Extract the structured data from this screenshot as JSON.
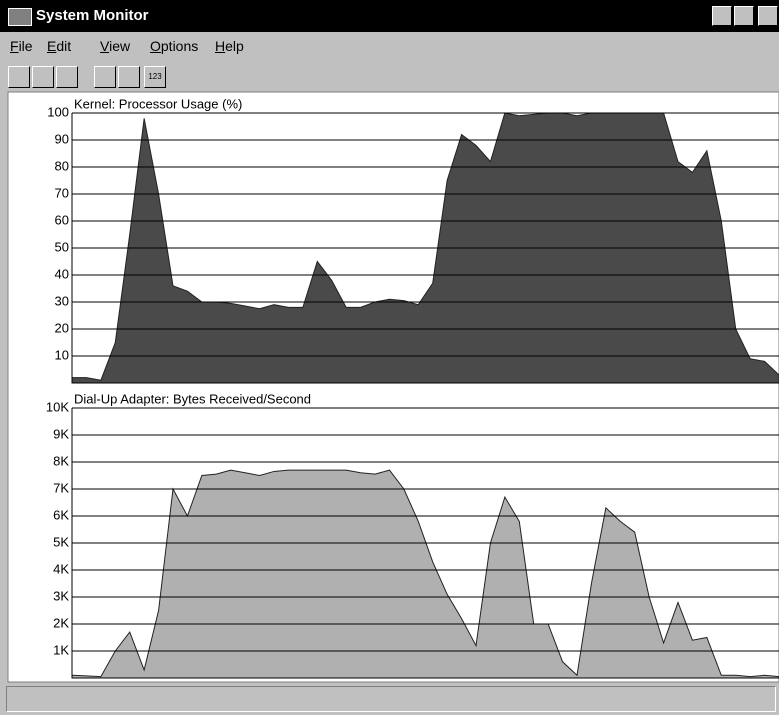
{
  "window": {
    "title": "System Monitor"
  },
  "menu": [
    "File",
    "Edit",
    "View",
    "Options",
    "Help"
  ],
  "toolbar_label": "123",
  "chart_data": [
    {
      "type": "area",
      "title": "Kernel: Processor Usage (%)",
      "color": "#4a4a4a",
      "ylim": [
        0,
        100
      ],
      "yticks": [
        10,
        20,
        30,
        40,
        50,
        60,
        70,
        80,
        90,
        100
      ],
      "grid": true,
      "values": [
        2,
        2,
        1,
        15,
        55,
        98,
        70,
        36,
        34,
        30,
        30,
        29.5,
        28.5,
        27.5,
        29,
        28,
        28,
        45,
        38,
        28,
        28,
        30,
        31,
        30.5,
        29,
        37,
        75,
        92,
        88,
        82,
        100,
        99,
        99.5,
        100,
        100,
        99,
        100,
        100,
        100,
        100,
        100,
        100,
        82,
        78,
        86,
        60,
        20,
        9,
        8,
        3
      ]
    },
    {
      "type": "area",
      "title": "Dial-Up Adapter: Bytes Received/Second",
      "color": "#b0b0b0",
      "ylim": [
        0,
        10000
      ],
      "yticks": [
        {
          "value": 1000,
          "label": "1K"
        },
        {
          "value": 2000,
          "label": "2K"
        },
        {
          "value": 3000,
          "label": "3K"
        },
        {
          "value": 4000,
          "label": "4K"
        },
        {
          "value": 5000,
          "label": "5K"
        },
        {
          "value": 6000,
          "label": "6K"
        },
        {
          "value": 7000,
          "label": "7K"
        },
        {
          "value": 8000,
          "label": "8K"
        },
        {
          "value": 9000,
          "label": "9K"
        },
        {
          "value": 10000,
          "label": "10K"
        }
      ],
      "grid": true,
      "values": [
        100,
        80,
        50,
        1000,
        1700,
        300,
        2500,
        7000,
        6000,
        7500,
        7550,
        7700,
        7600,
        7500,
        7650,
        7700,
        7700,
        7700,
        7700,
        7700,
        7600,
        7550,
        7700,
        7000,
        5800,
        4300,
        3100,
        2200,
        1200,
        5000,
        6700,
        5800,
        2000,
        2000,
        600,
        100,
        3500,
        6300,
        5800,
        5400,
        3000,
        1300,
        2800,
        1400,
        1500,
        100,
        100,
        50,
        100,
        50
      ]
    }
  ]
}
